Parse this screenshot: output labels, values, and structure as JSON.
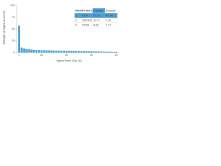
{
  "chart_data": {
    "type": "bar",
    "xlabel": "Signal Rank (Top 40)",
    "ylabel": "Strength of Signal (Z score)",
    "x": [
      1,
      2,
      3,
      4,
      5,
      6,
      7,
      8,
      9,
      10,
      11,
      12,
      13,
      14,
      15,
      16,
      17,
      18,
      19,
      20,
      21,
      22,
      23,
      24,
      25,
      26,
      27,
      28,
      29,
      30,
      31,
      32,
      33,
      34,
      35,
      36,
      37,
      38,
      39,
      40
    ],
    "values": [
      57.26,
      10.72,
      8.64,
      7.5,
      7,
      6.5,
      6,
      5.8,
      5.5,
      5.3,
      5,
      4.8,
      4.6,
      4.4,
      4.2,
      4,
      3.9,
      3.8,
      3.7,
      3.6,
      3.5,
      3.4,
      3.3,
      3.2,
      3.1,
      3,
      2.9,
      2.8,
      2.7,
      2.6,
      2.5,
      2.4,
      2.3,
      2.2,
      2.1,
      2,
      1.9,
      1.8,
      1.7,
      1.6
    ],
    "color": "#4a9fd5",
    "xlim": [
      0,
      41
    ],
    "xticks": [
      1,
      10,
      20,
      30,
      40
    ],
    "ylim": [
      0,
      100
    ],
    "yticks": [
      0,
      25,
      50,
      75,
      100
    ],
    "table": {
      "header": [
        "Rank",
        "Protein",
        "Z score",
        "S score"
      ],
      "rows": [
        [
          "1",
          "CD4",
          "57.26",
          "46.54"
        ],
        [
          "2",
          "ZNF426",
          "10.72",
          "2.08"
        ],
        [
          "3",
          "CD34",
          "8.64",
          "1.73"
        ]
      ]
    }
  }
}
